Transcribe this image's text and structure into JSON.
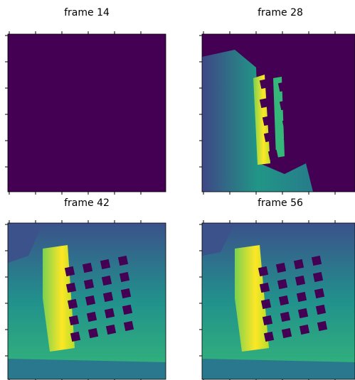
{
  "panels": [
    {
      "title": "frame 14"
    },
    {
      "title": "frame 28"
    },
    {
      "title": "frame 42"
    },
    {
      "title": "frame 56"
    }
  ]
}
